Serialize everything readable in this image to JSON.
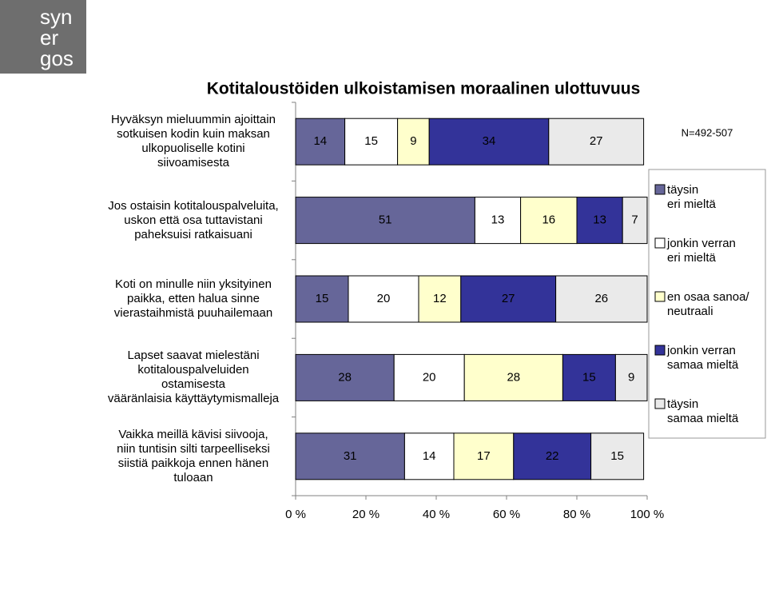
{
  "logo_lines": [
    "syn",
    "er",
    "gos"
  ],
  "chart_data": {
    "type": "stacked_bar_horizontal",
    "title": "Kotitaloustöiden ulkoistamisen moraalinen ulottuvuus",
    "annotation": "N=492-507",
    "categories": [
      "Hyväksyn mieluummin ajoittain\nsotkuisen kodin kuin maksan\nulkopuoliselle kotini\nsiivoamisesta",
      "Jos ostaisin kotitalouspalveluita,\nuskon että osa tuttavistani\npaheksuisi ratkaisuani",
      "Koti on minulle niin yksityinen\npaikka, etten halua sinne\nvierastaihmistä puuhailemaan",
      "Lapset saavat mielestäni\nkotitalouspalveluiden\nostamisesta\nvääränlaisia käyttäytymismalleja",
      "Vaikka meillä kävisi siivooja,\nniin tuntisin silti tarpeelliseksi\nsiistiä paikkoja ennen hänen\ntuloaan"
    ],
    "series": [
      {
        "name": "täysin\neri mieltä",
        "color": "#666699",
        "values": [
          14,
          51,
          15,
          28,
          31
        ]
      },
      {
        "name": "jonkin verran\neri mieltä",
        "color": "#ffffff",
        "values": [
          15,
          13,
          20,
          20,
          14
        ]
      },
      {
        "name": "en osaa sanoa/\nneutraali",
        "color": "#ffffcc",
        "values": [
          9,
          16,
          12,
          28,
          17
        ]
      },
      {
        "name": "jonkin verran\nsamaa mieltä",
        "color": "#333399",
        "values": [
          34,
          13,
          27,
          15,
          22
        ]
      },
      {
        "name": "täysin\nsamaa mieltä",
        "color": "#eaeaea",
        "values": [
          27,
          7,
          26,
          9,
          15
        ]
      }
    ],
    "xlim": [
      0,
      100
    ],
    "xticks": [
      {
        "value": 0,
        "label": "0 %"
      },
      {
        "value": 20,
        "label": "20 %"
      },
      {
        "value": 40,
        "label": "40 %"
      },
      {
        "value": 60,
        "label": "60 %"
      },
      {
        "value": 80,
        "label": "80 %"
      },
      {
        "value": 100,
        "label": "100 %"
      }
    ],
    "legend": "right"
  }
}
